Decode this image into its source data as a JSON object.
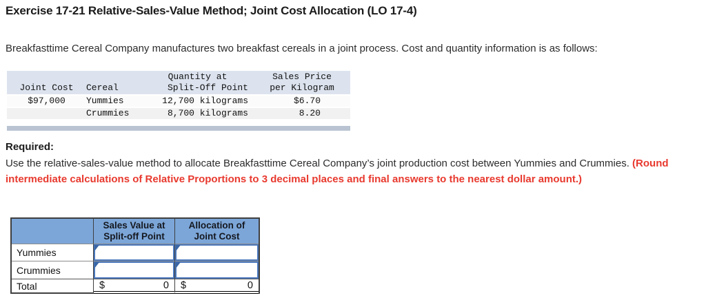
{
  "page": {
    "title": "Exercise 17-21 Relative-Sales-Value Method; Joint Cost Allocation (LO 17-4)",
    "intro": "Breakfasttime Cereal Company manufactures two breakfast cereals in a joint process. Cost and quantity information is as follows:"
  },
  "cost_table": {
    "header": {
      "joint_cost": "Joint Cost",
      "cereal": "Cereal",
      "quantity_line1": "Quantity at",
      "quantity_line2": "Split-Off Point",
      "price_line1": "Sales Price",
      "price_line2": "per Kilogram"
    },
    "rows": [
      {
        "joint_cost": "$97,000",
        "cereal": "Yummies",
        "quantity": "12,700 kilograms",
        "price": "$6.70"
      },
      {
        "joint_cost": "",
        "cereal": "Crummies",
        "quantity": "8,700 kilograms",
        "price": "8.20"
      }
    ]
  },
  "required": {
    "label": "Required:",
    "text_normal": "Use the relative-sales-value method to allocate Breakfasttime Cereal Company’s joint production cost between Yummies and Crummies. ",
    "text_emphasis": "(Round intermediate calculations of Relative Proportions to 3 decimal places and final answers to the nearest dollar amount.)"
  },
  "answer_table": {
    "headers": [
      "Sales Value at\nSplit-off Point",
      "Allocation of\nJoint Cost"
    ],
    "rows": [
      {
        "label": "Yummies",
        "cells": [
          "",
          ""
        ]
      },
      {
        "label": "Crummies",
        "cells": [
          "",
          ""
        ]
      }
    ],
    "total": {
      "label": "Total",
      "currency": "$",
      "values": [
        "0",
        "0"
      ]
    }
  },
  "colors": {
    "header_blue": "#7ca6d8",
    "input_border_blue": "#4a78bc",
    "flag_blue": "#3a66a6",
    "band_gray_blue": "#b9c3d2",
    "cost_header_bg": "#dce3ee",
    "required_red": "#e8392e"
  }
}
